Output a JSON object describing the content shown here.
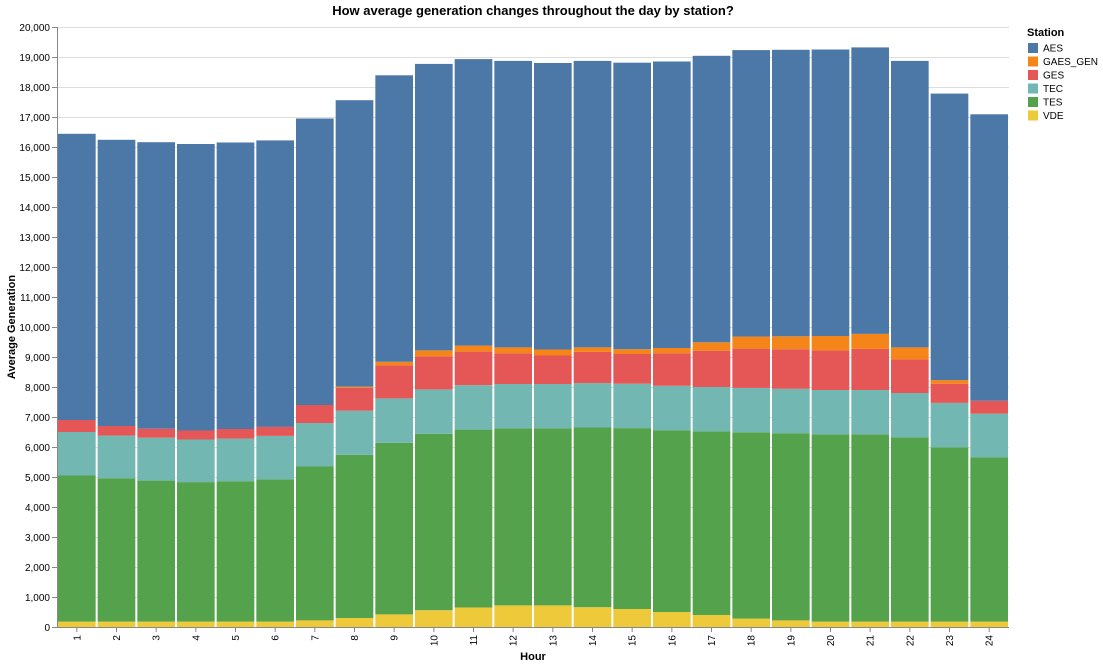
{
  "chart_data": {
    "type": "bar",
    "stacked": true,
    "title": "How average generation changes throughout the day by station?",
    "xlabel": "Hour",
    "ylabel": "Average Generation",
    "ylim": [
      0,
      20000
    ],
    "yticks": [
      0,
      1000,
      2000,
      3000,
      4000,
      5000,
      6000,
      7000,
      8000,
      9000,
      10000,
      11000,
      12000,
      13000,
      14000,
      15000,
      16000,
      17000,
      18000,
      19000,
      20000
    ],
    "ytick_labels": [
      "0",
      "1,000",
      "2,000",
      "3,000",
      "4,000",
      "5,000",
      "6,000",
      "7,000",
      "8,000",
      "9,000",
      "10,000",
      "11,000",
      "12,000",
      "13,000",
      "14,000",
      "15,000",
      "16,000",
      "17,000",
      "18,000",
      "19,000",
      "20,000"
    ],
    "grid": true,
    "categories": [
      "1",
      "2",
      "3",
      "4",
      "5",
      "6",
      "7",
      "8",
      "9",
      "10",
      "11",
      "12",
      "13",
      "14",
      "15",
      "16",
      "17",
      "18",
      "19",
      "20",
      "21",
      "22",
      "23",
      "24"
    ],
    "legend": {
      "title": "Station",
      "position": "right"
    },
    "series": [
      {
        "name": "VDE",
        "color": "#eeca3b",
        "values": [
          180,
          180,
          180,
          180,
          180,
          180,
          220,
          300,
          420,
          560,
          650,
          720,
          720,
          660,
          600,
          500,
          400,
          280,
          220,
          180,
          180,
          180,
          180,
          180
        ]
      },
      {
        "name": "TES",
        "color": "#54a24b",
        "values": [
          4870,
          4780,
          4700,
          4650,
          4680,
          4740,
          5130,
          5440,
          5720,
          5880,
          5930,
          5900,
          5900,
          5990,
          6030,
          6060,
          6120,
          6210,
          6240,
          6240,
          6240,
          6140,
          5810,
          5480
        ]
      },
      {
        "name": "TEC",
        "color": "#72b7b2",
        "values": [
          1450,
          1420,
          1430,
          1420,
          1420,
          1450,
          1450,
          1470,
          1480,
          1480,
          1480,
          1480,
          1480,
          1480,
          1480,
          1480,
          1480,
          1480,
          1480,
          1480,
          1480,
          1480,
          1480,
          1450
        ]
      },
      {
        "name": "GES",
        "color": "#e45756",
        "values": [
          400,
          320,
          300,
          300,
          320,
          300,
          600,
          760,
          1100,
          1100,
          1120,
          1020,
          950,
          1040,
          990,
          1080,
          1210,
          1310,
          1320,
          1320,
          1370,
          1120,
          640,
          430
        ]
      },
      {
        "name": "GAES_GEN",
        "color": "#f58518",
        "values": [
          0,
          0,
          0,
          0,
          0,
          0,
          0,
          40,
          120,
          200,
          200,
          200,
          200,
          150,
          160,
          180,
          280,
          400,
          430,
          480,
          500,
          400,
          120,
          0
        ]
      },
      {
        "name": "AES",
        "color": "#4c78a8",
        "values": [
          9540,
          9540,
          9550,
          9550,
          9550,
          9550,
          9550,
          9550,
          9550,
          9550,
          9550,
          9550,
          9550,
          9550,
          9550,
          9550,
          9550,
          9550,
          9550,
          9550,
          9550,
          9550,
          9550,
          9550
        ]
      }
    ],
    "legend_order": [
      "AES",
      "GAES_GEN",
      "GES",
      "TEC",
      "TES",
      "VDE"
    ]
  }
}
